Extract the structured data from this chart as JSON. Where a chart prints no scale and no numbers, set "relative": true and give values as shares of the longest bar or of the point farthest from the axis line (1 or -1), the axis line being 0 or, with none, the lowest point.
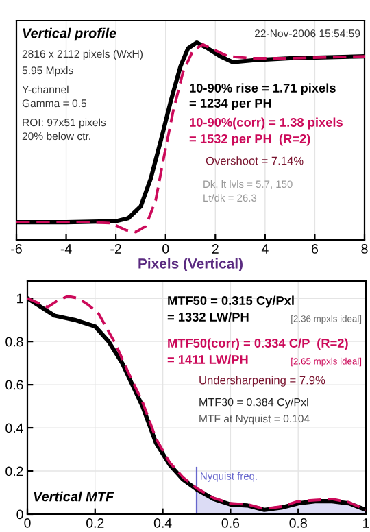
{
  "chart_data": [
    {
      "type": "line",
      "relative": true,
      "title": "Vertical profile",
      "xlabel": "Pixels (Vertical)",
      "xlim": [
        -6,
        8
      ],
      "xticks": [
        -6,
        -4,
        -2,
        0,
        2,
        4,
        6,
        8
      ],
      "grid": true,
      "marker": "none",
      "series": [
        {
          "color": "#000000",
          "line_style": "solid",
          "x": [
            -6,
            -4,
            -2,
            -1.5,
            -1,
            -0.6,
            -0.2,
            0.2,
            0.6,
            0.9,
            1.25,
            1.7,
            2.2,
            2.7,
            3.5,
            5,
            8
          ],
          "values": [
            0.09,
            0.09,
            0.095,
            0.11,
            0.17,
            0.31,
            0.5,
            0.7,
            0.88,
            0.97,
            1.0,
            0.97,
            0.93,
            0.9,
            0.91,
            0.92,
            0.93
          ]
        },
        {
          "color": "#cc0a5a",
          "line_style": "dashed",
          "x": [
            -6,
            -3,
            -2.2,
            -1.6,
            -1.2,
            -0.8,
            -0.4,
            -0.1,
            0.3,
            0.7,
            1.1,
            1.5,
            2,
            2.5,
            3.5,
            5,
            8
          ],
          "values": [
            0.09,
            0.09,
            0.085,
            0.05,
            0.04,
            0.07,
            0.2,
            0.4,
            0.65,
            0.85,
            0.96,
            0.99,
            0.96,
            0.93,
            0.92,
            0.92,
            0.93
          ]
        }
      ],
      "annotations": [
        "22-Nov-2006 15:54:59",
        "2816 x 2112 pixels (WxH)",
        "5.95 Mpxls",
        "Y-channel",
        "Gamma = 0.5",
        "ROI: 97x51 pixels",
        "20% below ctr.",
        "10-90% rise = 1.71 pixels",
        "= 1234 per PH",
        "10-90%(corr) = 1.38 pixels",
        "= 1532 per PH  (R=2)",
        "Overshoot = 7.14%",
        "Dk, lt lvls = 5.7, 150",
        "Lt/dk = 26.3"
      ]
    },
    {
      "type": "line",
      "title": "Vertical MTF",
      "xlim": [
        0,
        1
      ],
      "xticks": [
        0,
        0.2,
        0.4,
        0.6,
        0.8,
        1
      ],
      "ylim": [
        0,
        1.08
      ],
      "yticks": [
        0,
        0.2,
        0.4,
        0.6,
        0.8,
        1
      ],
      "grid": true,
      "marker": "none",
      "series": [
        {
          "type": "area",
          "color": "#dcdcf5",
          "x": [
            0.5,
            0.55,
            0.6,
            0.65,
            0.7,
            0.75,
            0.8,
            0.85,
            0.9,
            0.95,
            1
          ],
          "values": [
            0.115,
            0.07,
            0.045,
            0.04,
            0.02,
            0.03,
            0.05,
            0.06,
            0.06,
            0.05,
            0.02
          ]
        },
        {
          "color": "#000000",
          "line_style": "solid",
          "x": [
            0,
            0.04,
            0.08,
            0.14,
            0.2,
            0.24,
            0.28,
            0.31,
            0.34,
            0.38,
            0.42,
            0.46,
            0.5,
            0.55,
            0.6,
            0.65,
            0.7,
            0.75,
            0.8,
            0.85,
            0.9,
            0.95,
            1
          ],
          "values": [
            1.0,
            0.96,
            0.92,
            0.9,
            0.87,
            0.8,
            0.7,
            0.6,
            0.5,
            0.33,
            0.23,
            0.16,
            0.115,
            0.07,
            0.045,
            0.04,
            0.02,
            0.03,
            0.05,
            0.06,
            0.06,
            0.05,
            0.02
          ]
        },
        {
          "color": "#cc0a5a",
          "line_style": "dashed",
          "x": [
            0,
            0.03,
            0.06,
            0.09,
            0.12,
            0.15,
            0.18,
            0.21,
            0.26,
            0.3,
            0.34,
            0.38,
            0.42,
            0.46,
            0.5,
            0.55,
            0.6,
            0.65,
            0.7,
            0.75,
            0.8,
            0.85,
            0.9,
            0.95,
            1
          ],
          "values": [
            1.0,
            0.98,
            0.96,
            0.99,
            1.01,
            1.0,
            0.97,
            0.93,
            0.79,
            0.65,
            0.52,
            0.35,
            0.24,
            0.17,
            0.12,
            0.075,
            0.05,
            0.045,
            0.025,
            0.035,
            0.06,
            0.065,
            0.07,
            0.055,
            0.02
          ]
        }
      ],
      "ref_lines": [
        {
          "axis": "x",
          "value": 0.5,
          "label": "Nyquist freq.",
          "color": "#6666cc"
        }
      ],
      "annotations": [
        "MTF50 = 0.315 Cy/Pxl",
        "= 1332 LW/PH",
        "[2.36 mpxls ideal]",
        "MTF50(corr) = 0.334 C/P  (R=2)",
        "= 1411 LW/PH",
        "[2.65 mpxls ideal]",
        "Undersharpening = 7.9%",
        "MTF30 = 0.384 Cy/Pxl",
        "MTF at Nyquist = 0.104"
      ]
    }
  ]
}
